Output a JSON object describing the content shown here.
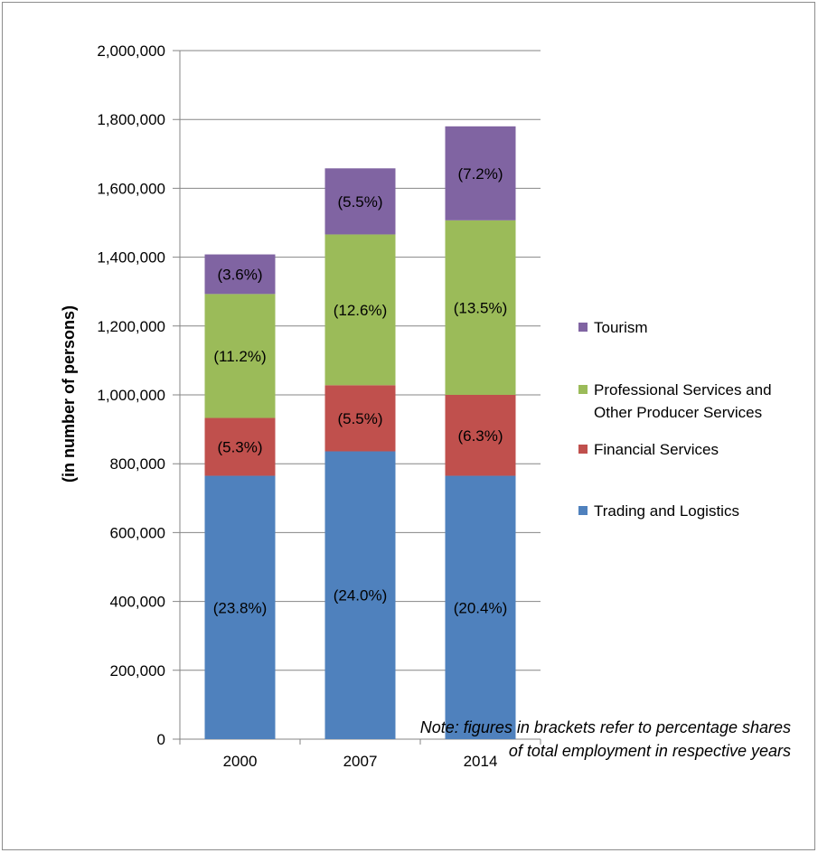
{
  "chart_data": {
    "type": "bar",
    "stacked": true,
    "categories": [
      "2000",
      "2007",
      "2014"
    ],
    "ylabel": "(in number of persons)",
    "ylim": [
      0,
      2000000
    ],
    "yticks": [
      0,
      200000,
      400000,
      600000,
      800000,
      1000000,
      1200000,
      1400000,
      1600000,
      1800000,
      2000000
    ],
    "ytick_labels": [
      "0",
      "200,000",
      "400,000",
      "600,000",
      "800,000",
      "1,000,000",
      "1,200,000",
      "1,400,000",
      "1,600,000",
      "1,800,000",
      "2,000,000"
    ],
    "grid": true,
    "legend_position": "right",
    "series": [
      {
        "name": "Trading and Logistics",
        "color": "#4f81bd",
        "values": [
          765000,
          836000,
          765000
        ],
        "labels": [
          "(23.8%)",
          "(24.0%)",
          "(20.4%)"
        ]
      },
      {
        "name": "Financial Services",
        "color": "#c0504d",
        "values": [
          168000,
          192000,
          235000
        ],
        "labels": [
          "(5.3%)",
          "(5.5%)",
          "(6.3%)"
        ]
      },
      {
        "name": "Professional Services and Other Producer Services",
        "color": "#9bbb59",
        "values": [
          360000,
          438000,
          507000
        ],
        "labels": [
          "(11.2%)",
          "(12.6%)",
          "(13.5%)"
        ]
      },
      {
        "name": "Tourism",
        "color": "#8064a2",
        "values": [
          115000,
          192000,
          273000
        ],
        "labels": [
          "(3.6%)",
          "(5.5%)",
          "(7.2%)"
        ]
      }
    ],
    "legend_lines": [
      [
        "Tourism"
      ],
      [
        "Professional Services and",
        "Other Producer Services"
      ],
      [
        "Financial Services"
      ],
      [
        "Trading and Logistics"
      ]
    ],
    "note": [
      "Note: figures in brackets refer to percentage shares",
      "of total employment in respective years"
    ]
  }
}
